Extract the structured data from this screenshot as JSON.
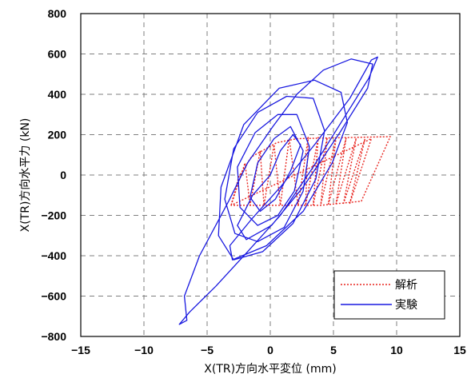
{
  "chart_data": {
    "type": "line",
    "xlabel": "X(TR)方向水平変位 (mm)",
    "ylabel": "X(TR)方向水平力 (kN)",
    "xlim": [
      -15,
      15
    ],
    "ylim": [
      -800,
      800
    ],
    "xticks": [
      -15,
      -10,
      -5,
      0,
      5,
      10,
      15
    ],
    "yticks": [
      -800,
      -600,
      -400,
      -200,
      0,
      200,
      400,
      600,
      800
    ],
    "grid": true,
    "legend_position": "bottom-right",
    "series": [
      {
        "name": "解析",
        "color": "#e8251f",
        "style": "dotted",
        "points": [
          [
            -3.1,
            -150
          ],
          [
            -2.5,
            -10
          ],
          [
            -1.5,
            90
          ],
          [
            0.5,
            160
          ],
          [
            2.1,
            180
          ],
          [
            9.5,
            190
          ],
          [
            7.2,
            -130
          ],
          [
            4.0,
            -150
          ],
          [
            -3.1,
            -150
          ],
          [
            8.0,
            180
          ],
          [
            6.3,
            -140
          ],
          [
            7.5,
            180
          ],
          [
            5.8,
            -140
          ],
          [
            6.8,
            182
          ],
          [
            5.2,
            -142
          ],
          [
            6.0,
            182
          ],
          [
            4.6,
            -144
          ],
          [
            5.2,
            184
          ],
          [
            4.0,
            -146
          ],
          [
            4.5,
            185
          ],
          [
            3.4,
            -148
          ],
          [
            3.8,
            186
          ],
          [
            2.8,
            -150
          ],
          [
            3.0,
            186
          ],
          [
            2.2,
            -150
          ],
          [
            1.5,
            180
          ],
          [
            0.8,
            -150
          ],
          [
            0.3,
            150
          ],
          [
            -0.5,
            -150
          ],
          [
            -0.8,
            120
          ],
          [
            -1.6,
            -150
          ],
          [
            -2.0,
            60
          ],
          [
            -3.1,
            -150
          ]
        ]
      },
      {
        "name": "実験",
        "color": "#1a1ae0",
        "style": "solid",
        "points": [
          [
            0,
            0
          ],
          [
            0.8,
            120
          ],
          [
            1.8,
            200
          ],
          [
            2.4,
            150
          ],
          [
            1.6,
            20
          ],
          [
            0.4,
            -120
          ],
          [
            -0.8,
            -180
          ],
          [
            -1.6,
            -110
          ],
          [
            -1.0,
            60
          ],
          [
            0.3,
            180
          ],
          [
            1.6,
            240
          ],
          [
            2.6,
            120
          ],
          [
            1.9,
            -80
          ],
          [
            0.6,
            -200
          ],
          [
            -1.0,
            -250
          ],
          [
            -2.4,
            -160
          ],
          [
            -2.6,
            40
          ],
          [
            -1.2,
            210
          ],
          [
            0.6,
            300
          ],
          [
            2.1,
            300
          ],
          [
            3.1,
            140
          ],
          [
            2.6,
            -80
          ],
          [
            1.1,
            -260
          ],
          [
            -1.0,
            -330
          ],
          [
            -2.8,
            -290
          ],
          [
            -3.6,
            -120
          ],
          [
            -2.9,
            130
          ],
          [
            -1.0,
            310
          ],
          [
            1.3,
            390
          ],
          [
            3.4,
            380
          ],
          [
            4.3,
            220
          ],
          [
            3.6,
            -20
          ],
          [
            1.8,
            -240
          ],
          [
            -0.6,
            -380
          ],
          [
            -2.9,
            -420
          ],
          [
            -4.1,
            -300
          ],
          [
            -3.9,
            -60
          ],
          [
            -2.1,
            250
          ],
          [
            0.7,
            430
          ],
          [
            3.5,
            470
          ],
          [
            5.6,
            410
          ],
          [
            6.1,
            260
          ],
          [
            4.9,
            60
          ],
          [
            2.6,
            -180
          ],
          [
            -0.3,
            -350
          ],
          [
            -3.0,
            -420
          ],
          [
            -3.2,
            -350
          ],
          [
            -1.5,
            -220
          ],
          [
            0.8,
            -60
          ],
          [
            3.5,
            150
          ],
          [
            6.3,
            380
          ],
          [
            8.0,
            570
          ],
          [
            8.5,
            585
          ],
          [
            7.8,
            480
          ],
          [
            6.0,
            300
          ],
          [
            3.4,
            40
          ],
          [
            0.8,
            -200
          ],
          [
            -1.8,
            -380
          ],
          [
            -4.3,
            -550
          ],
          [
            -6.4,
            -680
          ],
          [
            -7.2,
            -740
          ],
          [
            -6.6,
            -720
          ],
          [
            -6.8,
            -600
          ],
          [
            -5.6,
            -400
          ],
          [
            -3.3,
            -130
          ],
          [
            -1.8,
            60
          ],
          [
            0.2,
            240
          ],
          [
            2.1,
            400
          ],
          [
            4.2,
            520
          ],
          [
            6.4,
            575
          ],
          [
            8.1,
            550
          ],
          [
            7.7,
            430
          ],
          [
            5.5,
            210
          ],
          [
            2.6,
            -60
          ],
          [
            0.1,
            -250
          ],
          [
            -1.9,
            -320
          ],
          [
            -2.6,
            -250
          ],
          [
            -1.4,
            -100
          ],
          [
            0.0,
            0
          ]
        ]
      }
    ]
  }
}
